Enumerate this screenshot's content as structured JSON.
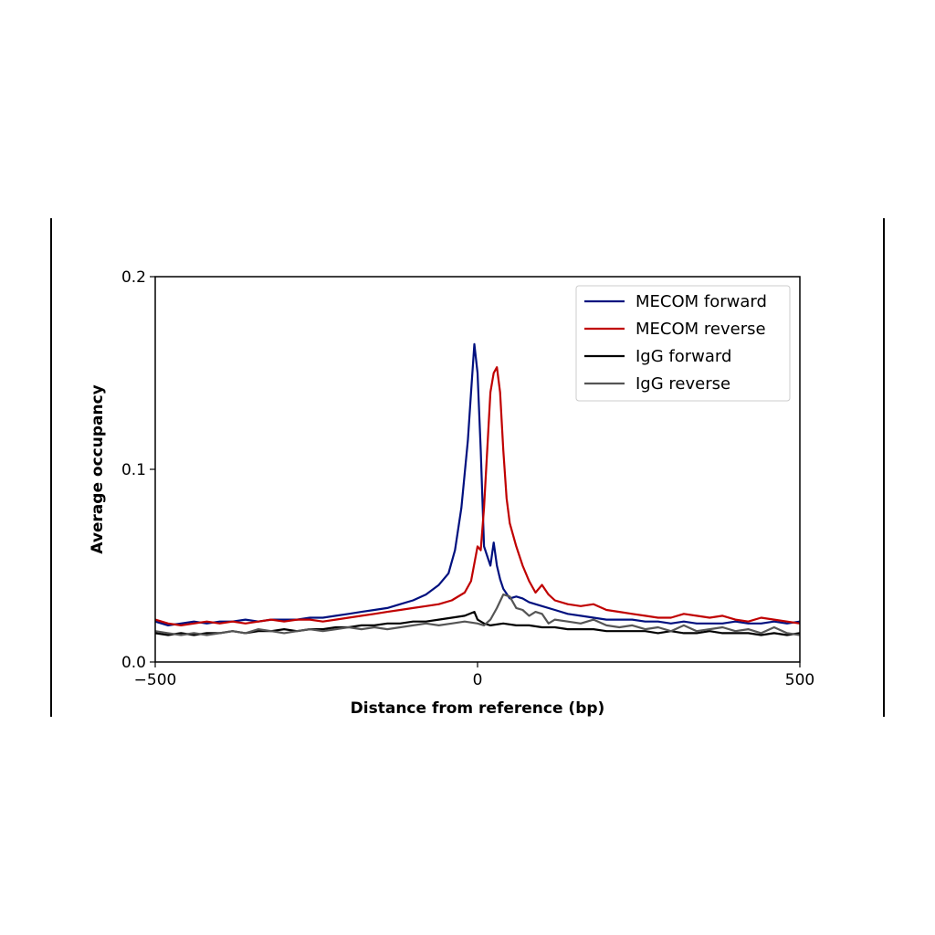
{
  "chart_data": {
    "type": "line",
    "title": "",
    "xlabel": "Distance from reference (bp)",
    "ylabel": "Average occupancy",
    "xlim": [
      -500,
      500
    ],
    "ylim": [
      0,
      0.2
    ],
    "xticks": [
      {
        "value": -500,
        "label": "−500"
      },
      {
        "value": 0,
        "label": "0"
      },
      {
        "value": 500,
        "label": "500"
      }
    ],
    "yticks": [
      {
        "value": 0,
        "label": "0.0"
      },
      {
        "value": 0.1,
        "label": "0.1"
      },
      {
        "value": 0.2,
        "label": "0.2"
      }
    ],
    "grid": false,
    "legend_position": "top-right",
    "series": [
      {
        "name": "MECOM forward",
        "color": "#00107f",
        "points": [
          [
            -500,
            0.021
          ],
          [
            -480,
            0.019
          ],
          [
            -460,
            0.02
          ],
          [
            -440,
            0.021
          ],
          [
            -420,
            0.02
          ],
          [
            -400,
            0.021
          ],
          [
            -380,
            0.021
          ],
          [
            -360,
            0.022
          ],
          [
            -340,
            0.021
          ],
          [
            -320,
            0.022
          ],
          [
            -300,
            0.022
          ],
          [
            -280,
            0.022
          ],
          [
            -260,
            0.023
          ],
          [
            -240,
            0.023
          ],
          [
            -220,
            0.024
          ],
          [
            -200,
            0.025
          ],
          [
            -180,
            0.026
          ],
          [
            -160,
            0.027
          ],
          [
            -140,
            0.028
          ],
          [
            -120,
            0.03
          ],
          [
            -100,
            0.032
          ],
          [
            -80,
            0.035
          ],
          [
            -60,
            0.04
          ],
          [
            -45,
            0.046
          ],
          [
            -35,
            0.058
          ],
          [
            -25,
            0.08
          ],
          [
            -15,
            0.115
          ],
          [
            -10,
            0.14
          ],
          [
            -5,
            0.165
          ],
          [
            0,
            0.15
          ],
          [
            5,
            0.11
          ],
          [
            10,
            0.06
          ],
          [
            15,
            0.055
          ],
          [
            20,
            0.05
          ],
          [
            25,
            0.062
          ],
          [
            30,
            0.05
          ],
          [
            35,
            0.043
          ],
          [
            40,
            0.038
          ],
          [
            50,
            0.033
          ],
          [
            60,
            0.034
          ],
          [
            70,
            0.033
          ],
          [
            80,
            0.031
          ],
          [
            90,
            0.03
          ],
          [
            100,
            0.029
          ],
          [
            120,
            0.027
          ],
          [
            140,
            0.025
          ],
          [
            160,
            0.024
          ],
          [
            180,
            0.023
          ],
          [
            200,
            0.022
          ],
          [
            220,
            0.022
          ],
          [
            240,
            0.022
          ],
          [
            260,
            0.021
          ],
          [
            280,
            0.021
          ],
          [
            300,
            0.02
          ],
          [
            320,
            0.021
          ],
          [
            340,
            0.02
          ],
          [
            360,
            0.02
          ],
          [
            380,
            0.02
          ],
          [
            400,
            0.021
          ],
          [
            420,
            0.02
          ],
          [
            440,
            0.02
          ],
          [
            460,
            0.021
          ],
          [
            480,
            0.02
          ],
          [
            500,
            0.021
          ]
        ]
      },
      {
        "name": "MECOM reverse",
        "color": "#c00000",
        "points": [
          [
            -500,
            0.022
          ],
          [
            -480,
            0.02
          ],
          [
            -460,
            0.019
          ],
          [
            -440,
            0.02
          ],
          [
            -420,
            0.021
          ],
          [
            -400,
            0.02
          ],
          [
            -380,
            0.021
          ],
          [
            -360,
            0.02
          ],
          [
            -340,
            0.021
          ],
          [
            -320,
            0.022
          ],
          [
            -300,
            0.021
          ],
          [
            -280,
            0.022
          ],
          [
            -260,
            0.022
          ],
          [
            -240,
            0.021
          ],
          [
            -220,
            0.022
          ],
          [
            -200,
            0.023
          ],
          [
            -180,
            0.024
          ],
          [
            -160,
            0.025
          ],
          [
            -140,
            0.026
          ],
          [
            -120,
            0.027
          ],
          [
            -100,
            0.028
          ],
          [
            -80,
            0.029
          ],
          [
            -60,
            0.03
          ],
          [
            -40,
            0.032
          ],
          [
            -20,
            0.036
          ],
          [
            -10,
            0.042
          ],
          [
            0,
            0.06
          ],
          [
            5,
            0.058
          ],
          [
            10,
            0.08
          ],
          [
            15,
            0.11
          ],
          [
            20,
            0.14
          ],
          [
            25,
            0.15
          ],
          [
            30,
            0.153
          ],
          [
            35,
            0.14
          ],
          [
            40,
            0.11
          ],
          [
            45,
            0.085
          ],
          [
            50,
            0.072
          ],
          [
            60,
            0.06
          ],
          [
            70,
            0.05
          ],
          [
            80,
            0.042
          ],
          [
            90,
            0.036
          ],
          [
            100,
            0.04
          ],
          [
            110,
            0.035
          ],
          [
            120,
            0.032
          ],
          [
            140,
            0.03
          ],
          [
            160,
            0.029
          ],
          [
            180,
            0.03
          ],
          [
            200,
            0.027
          ],
          [
            220,
            0.026
          ],
          [
            240,
            0.025
          ],
          [
            260,
            0.024
          ],
          [
            280,
            0.023
          ],
          [
            300,
            0.023
          ],
          [
            320,
            0.025
          ],
          [
            340,
            0.024
          ],
          [
            360,
            0.023
          ],
          [
            380,
            0.024
          ],
          [
            400,
            0.022
          ],
          [
            420,
            0.021
          ],
          [
            440,
            0.023
          ],
          [
            460,
            0.022
          ],
          [
            480,
            0.021
          ],
          [
            500,
            0.02
          ]
        ]
      },
      {
        "name": "IgG forward",
        "color": "#000000",
        "points": [
          [
            -500,
            0.015
          ],
          [
            -480,
            0.014
          ],
          [
            -460,
            0.015
          ],
          [
            -440,
            0.014
          ],
          [
            -420,
            0.015
          ],
          [
            -400,
            0.015
          ],
          [
            -380,
            0.016
          ],
          [
            -360,
            0.015
          ],
          [
            -340,
            0.016
          ],
          [
            -320,
            0.016
          ],
          [
            -300,
            0.017
          ],
          [
            -280,
            0.016
          ],
          [
            -260,
            0.017
          ],
          [
            -240,
            0.017
          ],
          [
            -220,
            0.018
          ],
          [
            -200,
            0.018
          ],
          [
            -180,
            0.019
          ],
          [
            -160,
            0.019
          ],
          [
            -140,
            0.02
          ],
          [
            -120,
            0.02
          ],
          [
            -100,
            0.021
          ],
          [
            -80,
            0.021
          ],
          [
            -60,
            0.022
          ],
          [
            -40,
            0.023
          ],
          [
            -20,
            0.024
          ],
          [
            -5,
            0.026
          ],
          [
            0,
            0.022
          ],
          [
            10,
            0.02
          ],
          [
            20,
            0.019
          ],
          [
            40,
            0.02
          ],
          [
            60,
            0.019
          ],
          [
            80,
            0.019
          ],
          [
            100,
            0.018
          ],
          [
            120,
            0.018
          ],
          [
            140,
            0.017
          ],
          [
            160,
            0.017
          ],
          [
            180,
            0.017
          ],
          [
            200,
            0.016
          ],
          [
            220,
            0.016
          ],
          [
            240,
            0.016
          ],
          [
            260,
            0.016
          ],
          [
            280,
            0.015
          ],
          [
            300,
            0.016
          ],
          [
            320,
            0.015
          ],
          [
            340,
            0.015
          ],
          [
            360,
            0.016
          ],
          [
            380,
            0.015
          ],
          [
            400,
            0.015
          ],
          [
            420,
            0.015
          ],
          [
            440,
            0.014
          ],
          [
            460,
            0.015
          ],
          [
            480,
            0.014
          ],
          [
            500,
            0.015
          ]
        ]
      },
      {
        "name": "IgG reverse",
        "color": "#555555",
        "points": [
          [
            -500,
            0.016
          ],
          [
            -480,
            0.015
          ],
          [
            -460,
            0.014
          ],
          [
            -440,
            0.015
          ],
          [
            -420,
            0.014
          ],
          [
            -400,
            0.015
          ],
          [
            -380,
            0.016
          ],
          [
            -360,
            0.015
          ],
          [
            -340,
            0.017
          ],
          [
            -320,
            0.016
          ],
          [
            -300,
            0.015
          ],
          [
            -280,
            0.016
          ],
          [
            -260,
            0.017
          ],
          [
            -240,
            0.016
          ],
          [
            -220,
            0.017
          ],
          [
            -200,
            0.018
          ],
          [
            -180,
            0.017
          ],
          [
            -160,
            0.018
          ],
          [
            -140,
            0.017
          ],
          [
            -120,
            0.018
          ],
          [
            -100,
            0.019
          ],
          [
            -80,
            0.02
          ],
          [
            -60,
            0.019
          ],
          [
            -40,
            0.02
          ],
          [
            -20,
            0.021
          ],
          [
            0,
            0.02
          ],
          [
            10,
            0.019
          ],
          [
            20,
            0.022
          ],
          [
            30,
            0.028
          ],
          [
            40,
            0.035
          ],
          [
            50,
            0.034
          ],
          [
            60,
            0.028
          ],
          [
            70,
            0.027
          ],
          [
            80,
            0.024
          ],
          [
            90,
            0.026
          ],
          [
            100,
            0.025
          ],
          [
            110,
            0.02
          ],
          [
            120,
            0.022
          ],
          [
            140,
            0.021
          ],
          [
            160,
            0.02
          ],
          [
            180,
            0.022
          ],
          [
            200,
            0.019
          ],
          [
            220,
            0.018
          ],
          [
            240,
            0.019
          ],
          [
            260,
            0.017
          ],
          [
            280,
            0.018
          ],
          [
            300,
            0.016
          ],
          [
            320,
            0.019
          ],
          [
            340,
            0.016
          ],
          [
            360,
            0.017
          ],
          [
            380,
            0.018
          ],
          [
            400,
            0.016
          ],
          [
            420,
            0.017
          ],
          [
            440,
            0.015
          ],
          [
            460,
            0.018
          ],
          [
            480,
            0.015
          ],
          [
            500,
            0.014
          ]
        ]
      }
    ]
  }
}
